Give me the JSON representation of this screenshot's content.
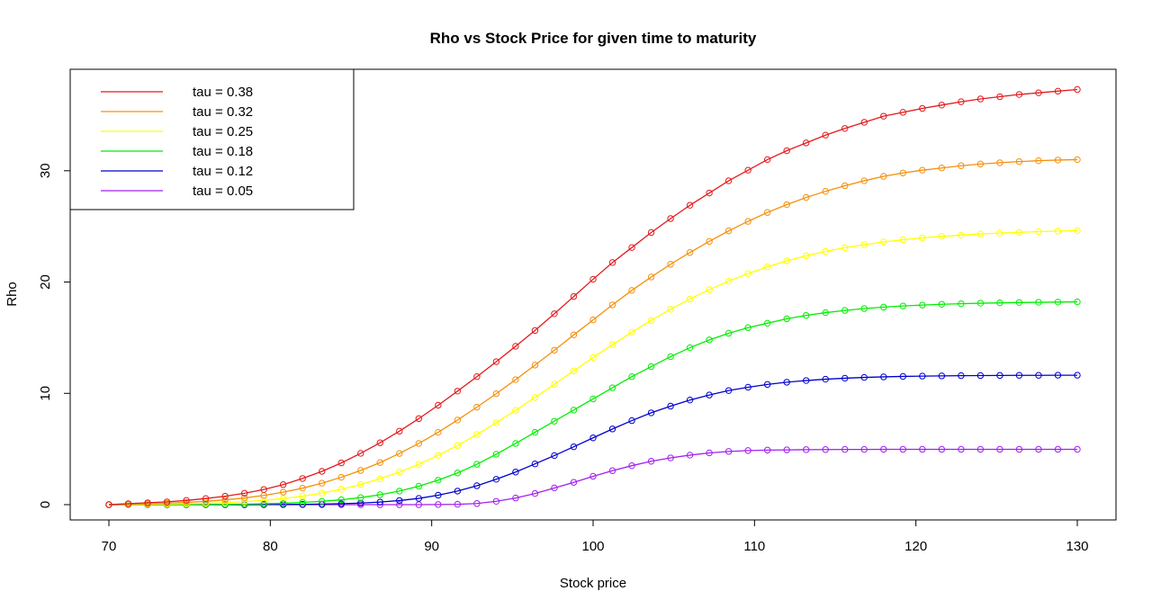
{
  "chart_data": {
    "type": "line",
    "title": "Rho vs Stock Price for given time to maturity",
    "xlabel": "Stock price",
    "ylabel": "Rho",
    "xlim": [
      70,
      130
    ],
    "ylim": [
      0,
      37.5
    ],
    "x_ticks": [
      "70",
      "80",
      "90",
      "100",
      "110",
      "120",
      "130"
    ],
    "y_ticks": [
      "0",
      "10",
      "20",
      "30"
    ],
    "x": [
      70,
      71.2,
      72.4,
      73.6,
      74.8,
      76,
      77.2,
      78.4,
      79.6,
      80.8,
      82,
      83.2,
      84.4,
      85.6,
      86.8,
      88,
      89.2,
      90.4,
      91.6,
      92.8,
      94,
      95.2,
      96.4,
      97.6,
      98.8,
      100,
      101.2,
      102.4,
      103.6,
      104.8,
      106,
      107.2,
      108.4,
      109.6,
      110.8,
      112,
      113.2,
      114.4,
      115.6,
      116.8,
      118,
      119.2,
      120.4,
      121.6,
      122.8,
      124,
      125.2,
      126.4,
      127.6,
      128.8,
      130
    ],
    "legend_position": "top-left",
    "series": [
      {
        "name": "tau = 0.38",
        "color": "#e31a1c",
        "values": [
          0,
          0.09,
          0.17,
          0.25,
          0.38,
          0.55,
          0.76,
          1.02,
          1.36,
          1.8,
          2.35,
          2.99,
          3.75,
          4.61,
          5.56,
          6.6,
          7.73,
          8.93,
          10.2,
          11.5,
          12.84,
          14.23,
          15.65,
          17.15,
          18.7,
          20.25,
          21.75,
          23.1,
          24.45,
          25.7,
          26.9,
          28.0,
          29.1,
          30.05,
          31.0,
          31.8,
          32.5,
          33.2,
          33.8,
          34.35,
          34.9,
          35.25,
          35.6,
          35.9,
          36.2,
          36.45,
          36.65,
          36.85,
          37.0,
          37.15,
          37.3
        ]
      },
      {
        "name": "tau = 0.32",
        "color": "#f4900c",
        "values": [
          0,
          0.04,
          0.08,
          0.13,
          0.2,
          0.3,
          0.43,
          0.6,
          0.83,
          1.12,
          1.48,
          1.93,
          2.46,
          3.07,
          3.78,
          4.6,
          5.5,
          6.5,
          7.6,
          8.76,
          9.97,
          11.23,
          12.54,
          13.87,
          15.25,
          16.6,
          17.95,
          19.25,
          20.45,
          21.6,
          22.65,
          23.65,
          24.6,
          25.45,
          26.25,
          26.95,
          27.6,
          28.15,
          28.65,
          29.1,
          29.5,
          29.8,
          30.05,
          30.25,
          30.45,
          30.6,
          30.72,
          30.82,
          30.9,
          30.96,
          31.0
        ]
      },
      {
        "name": "tau = 0.25",
        "color": "#ffff00",
        "values": [
          0,
          0.01,
          0.03,
          0.05,
          0.08,
          0.12,
          0.18,
          0.27,
          0.39,
          0.55,
          0.76,
          1.04,
          1.38,
          1.81,
          2.32,
          2.93,
          3.63,
          4.43,
          5.32,
          6.3,
          7.36,
          8.47,
          9.63,
          10.82,
          12.02,
          13.22,
          14.38,
          15.5,
          16.55,
          17.55,
          18.48,
          19.32,
          20.08,
          20.76,
          21.37,
          21.9,
          22.36,
          22.75,
          23.08,
          23.36,
          23.6,
          23.8,
          23.97,
          24.1,
          24.22,
          24.32,
          24.4,
          24.47,
          24.53,
          24.58,
          24.62
        ]
      },
      {
        "name": "tau = 0.18",
        "color": "#00ee00",
        "values": [
          0,
          0,
          0,
          0.01,
          0.01,
          0.02,
          0.03,
          0.05,
          0.08,
          0.13,
          0.2,
          0.3,
          0.44,
          0.63,
          0.89,
          1.22,
          1.66,
          2.2,
          2.85,
          3.63,
          4.53,
          5.5,
          6.5,
          7.5,
          8.5,
          9.5,
          10.5,
          11.5,
          12.4,
          13.3,
          14.1,
          14.8,
          15.4,
          15.9,
          16.3,
          16.7,
          17.0,
          17.25,
          17.45,
          17.62,
          17.75,
          17.85,
          17.93,
          18.0,
          18.05,
          18.1,
          18.13,
          18.16,
          18.18,
          18.2,
          18.22
        ]
      },
      {
        "name": "tau = 0.12",
        "color": "#0000cd",
        "values": [
          0,
          0,
          0,
          0,
          0,
          0,
          0,
          0,
          0.01,
          0.02,
          0.03,
          0.05,
          0.09,
          0.14,
          0.23,
          0.37,
          0.56,
          0.85,
          1.22,
          1.7,
          2.28,
          2.93,
          3.66,
          4.41,
          5.2,
          6.0,
          6.8,
          7.55,
          8.25,
          8.85,
          9.4,
          9.85,
          10.25,
          10.55,
          10.8,
          11.0,
          11.15,
          11.27,
          11.36,
          11.43,
          11.48,
          11.52,
          11.55,
          11.57,
          11.59,
          11.6,
          11.61,
          11.62,
          11.62,
          11.63,
          11.63
        ]
      },
      {
        "name": "tau = 0.05",
        "color": "#a020f0",
        "values": [
          0,
          0,
          0,
          0,
          0,
          0,
          0,
          0,
          0,
          0,
          0,
          0,
          0,
          0,
          0,
          0,
          0,
          0.01,
          0.03,
          0.1,
          0.3,
          0.6,
          1.0,
          1.5,
          2.0,
          2.55,
          3.05,
          3.5,
          3.9,
          4.2,
          4.45,
          4.65,
          4.78,
          4.86,
          4.9,
          4.92,
          4.94,
          4.95,
          4.96,
          4.96,
          4.97,
          4.97,
          4.97,
          4.97,
          4.97,
          4.97,
          4.97,
          4.97,
          4.97,
          4.97,
          4.97
        ]
      }
    ]
  }
}
